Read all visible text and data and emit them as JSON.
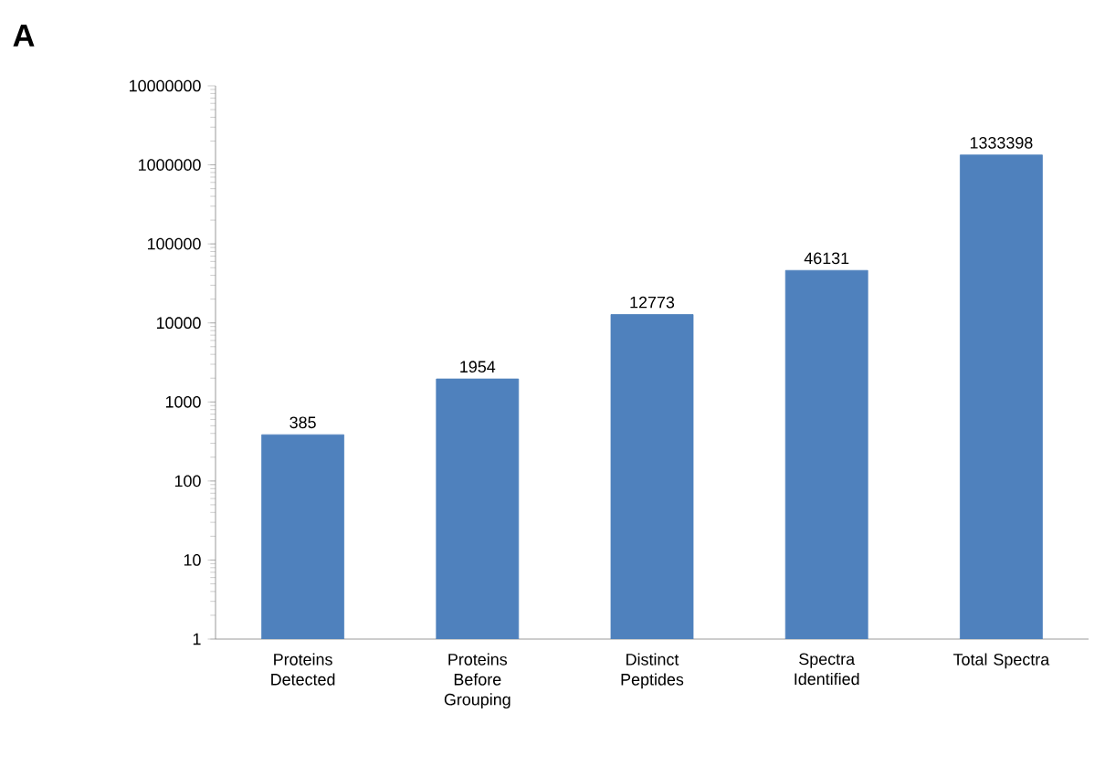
{
  "chart_data": {
    "type": "bar",
    "title": "A",
    "categories": [
      "Proteins Detected",
      "Proteins Before Grouping",
      "Distinct Peptides",
      "Spectra Identified",
      "Total Spectra"
    ],
    "values": [
      385,
      1954,
      12773,
      46131,
      1333398
    ],
    "color": "#4f81bd",
    "log": "y",
    "ylim": [
      1,
      10000000
    ],
    "yticks": [
      1,
      10,
      100,
      1000,
      10000,
      100000,
      1000000,
      10000000
    ],
    "data_labels": true
  }
}
